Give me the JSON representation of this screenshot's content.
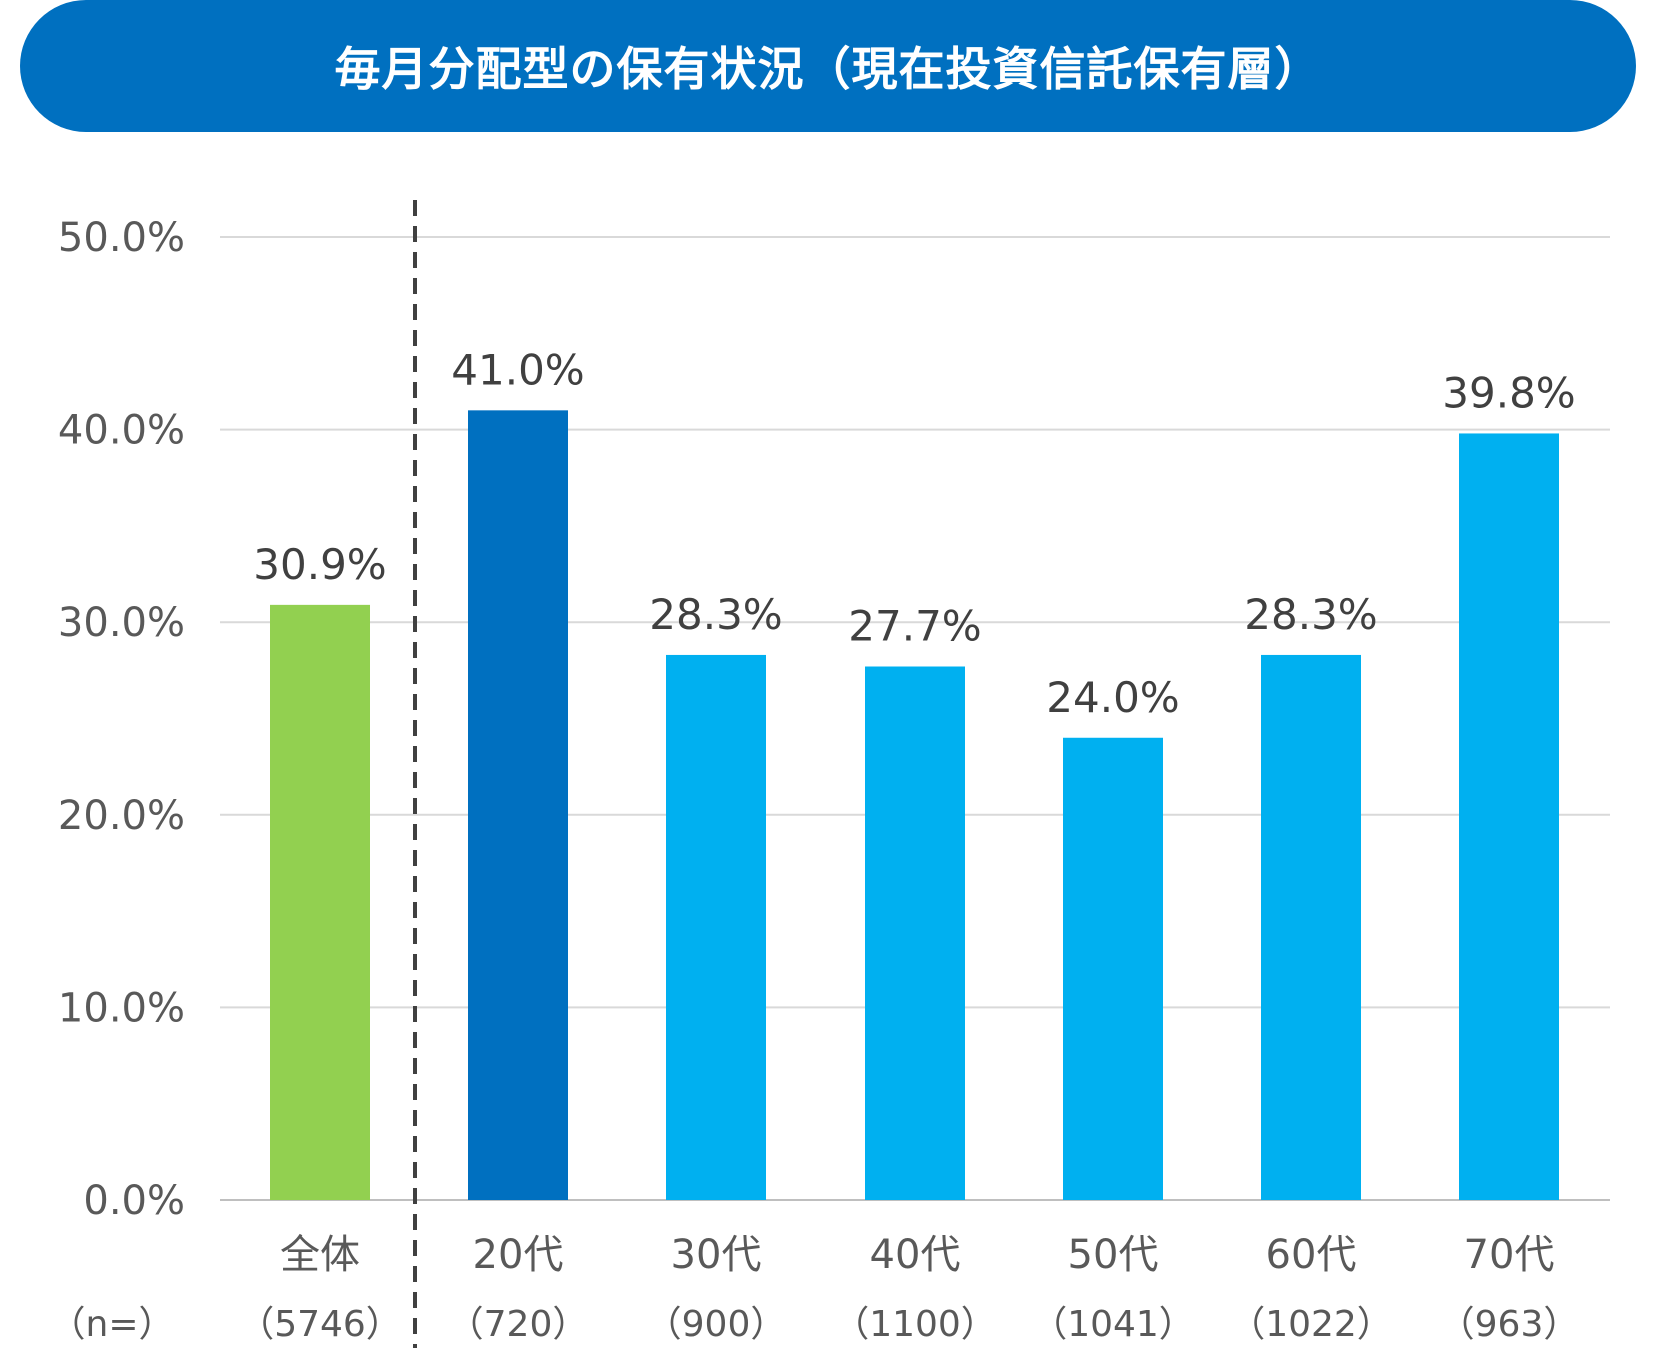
{
  "chart_data": {
    "type": "bar",
    "title": "毎月分配型の保有状況（現在投資信託保有層）",
    "categories": [
      "全体",
      "20代",
      "30代",
      "40代",
      "50代",
      "60代",
      "70代"
    ],
    "sample_sizes": [
      "（5746）",
      "（720）",
      "（900）",
      "（1100）",
      "（1041）",
      "（1022）",
      "（963）"
    ],
    "n_label": "（n=）",
    "values": [
      30.9,
      41.0,
      28.3,
      27.7,
      24.0,
      28.3,
      39.8
    ],
    "value_labels": [
      "30.9%",
      "41.0%",
      "28.3%",
      "27.7%",
      "24.0%",
      "28.3%",
      "39.8%"
    ],
    "ylim": [
      0,
      50
    ],
    "yticks": [
      0,
      10,
      20,
      30,
      40,
      50
    ],
    "ytick_labels": [
      "0.0%",
      "10.0%",
      "20.0%",
      "30.0%",
      "40.0%",
      "50.0%"
    ],
    "grid": true,
    "divider_after_index": 0,
    "colors": [
      "#92d050",
      "#0070c0",
      "#00b0f0",
      "#00b0f0",
      "#00b0f0",
      "#00b0f0",
      "#00b0f0"
    ],
    "xlabel": "",
    "ylabel": ""
  }
}
